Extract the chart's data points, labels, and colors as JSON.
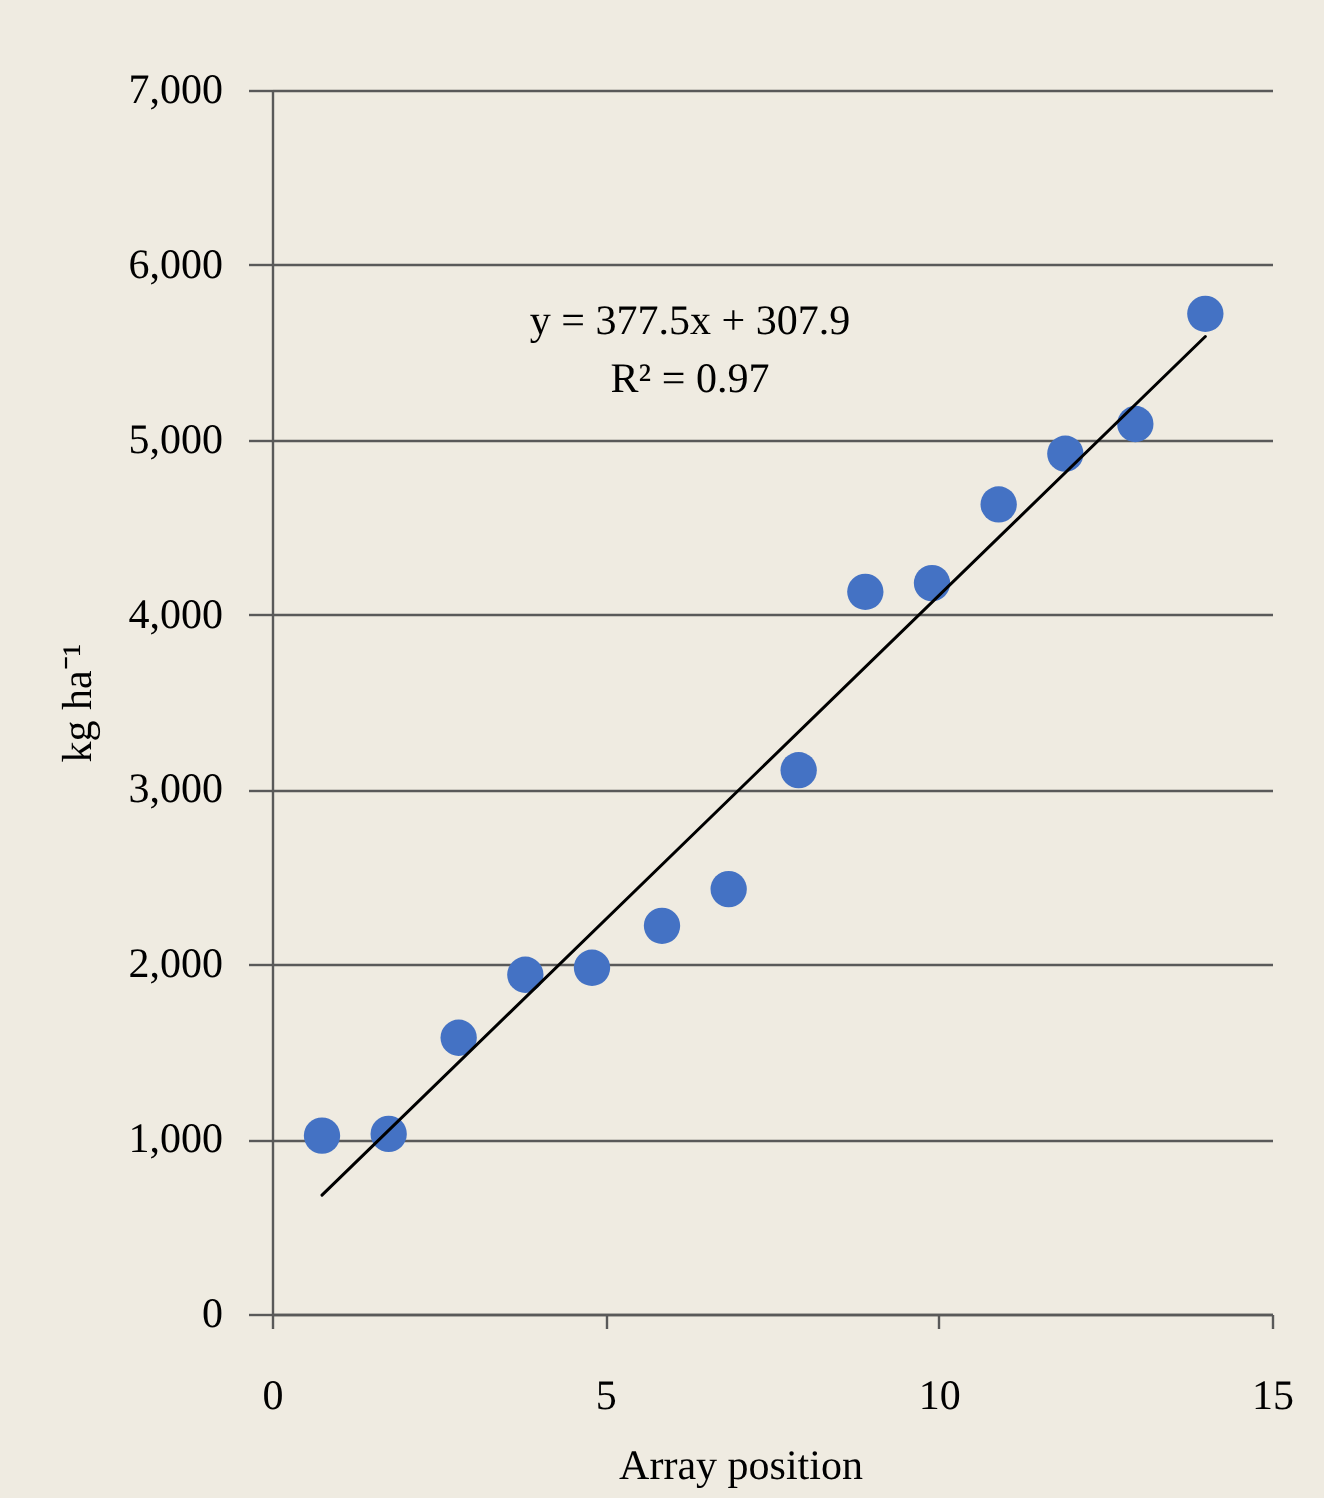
{
  "chart_data": {
    "type": "scatter",
    "xlabel": "Array position",
    "ylabel": "kg ha⁻¹",
    "x": [
      0.75,
      1.75,
      2.8,
      3.8,
      4.8,
      5.85,
      6.85,
      7.9,
      8.9,
      9.9,
      10.9,
      11.9,
      12.95,
      14.0
    ],
    "series": [
      {
        "color": "#4472c4",
        "marker": "circle",
        "values": [
          1020,
          1030,
          1580,
          1940,
          1980,
          2220,
          2430,
          3110,
          4130,
          4180,
          4630,
          4920,
          5090,
          5720
        ]
      },
      {
        "type": "line",
        "color": "#000000",
        "line_style": "solid",
        "x": [
          0.75,
          14.0
        ],
        "values": [
          680,
          5590
        ]
      }
    ],
    "xlim": [
      0,
      15
    ],
    "xticks": [
      0,
      5,
      10,
      15
    ],
    "ylim": [
      0,
      7000
    ],
    "yticks": [
      0,
      {
        "value": 1000,
        "label": "1,000"
      },
      {
        "value": 2000,
        "label": "2,000"
      },
      {
        "value": 3000,
        "label": "3,000"
      },
      {
        "value": 4000,
        "label": "4,000"
      },
      {
        "value": 5000,
        "label": "5,000"
      },
      {
        "value": 6000,
        "label": "6,000"
      },
      {
        "value": 7000,
        "label": "7,000"
      }
    ],
    "grid": "y",
    "annotations": [
      "y = 377.5x + 307.9",
      "R² = 0.97"
    ]
  }
}
